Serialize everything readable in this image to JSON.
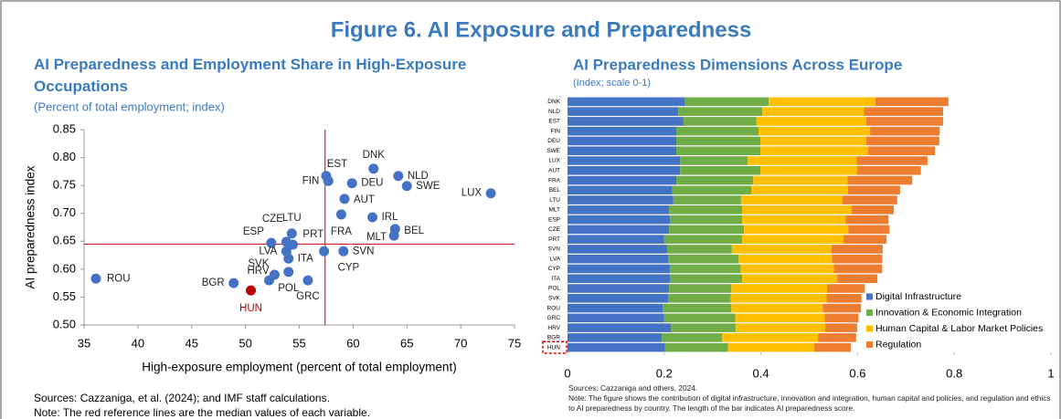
{
  "title": "Figure 6. AI Exposure and Preparedness",
  "chart_data": [
    {
      "type": "scatter",
      "title": "AI Preparedness and Employment Share in High-Exposure Occupations",
      "subtitle": "(Percent of total employment; index)",
      "x_label": "High-exposure employment (percent of total employment)",
      "y_label": "AI preparedness index",
      "labels": [
        "ROU",
        "BGR",
        "HUN",
        "HRV",
        "SVK",
        "POL",
        "GRC",
        "ESP",
        "CZE",
        "LTU",
        "PRT",
        "LVA",
        "ITA",
        "CYP",
        "SVN",
        "FRA",
        "MLT",
        "BEL",
        "IRL",
        "AUT",
        "FIN",
        "EST",
        "DEU",
        "DNK",
        "NLD",
        "SWE",
        "LUX"
      ],
      "x": [
        36.1,
        48.9,
        50.5,
        52.2,
        52.7,
        54.0,
        55.8,
        52.4,
        53.8,
        54.3,
        54.4,
        53.8,
        54.0,
        57.3,
        59.1,
        58.9,
        63.8,
        63.9,
        61.8,
        59.2,
        57.7,
        57.5,
        59.9,
        61.9,
        64.2,
        65.0,
        72.8
      ],
      "y": [
        0.583,
        0.575,
        0.562,
        0.58,
        0.59,
        0.595,
        0.58,
        0.647,
        0.649,
        0.664,
        0.644,
        0.632,
        0.619,
        0.632,
        0.632,
        0.698,
        0.66,
        0.672,
        0.693,
        0.726,
        0.758,
        0.767,
        0.754,
        0.78,
        0.767,
        0.749,
        0.736
      ],
      "colors": [
        "#4472c4",
        "#4472c4",
        "#c00000",
        "#4472c4",
        "#4472c4",
        "#4472c4",
        "#4472c4",
        "#4472c4",
        "#4472c4",
        "#4472c4",
        "#4472c4",
        "#4472c4",
        "#4472c4",
        "#4472c4",
        "#4472c4",
        "#4472c4",
        "#4472c4",
        "#4472c4",
        "#4472c4",
        "#4472c4",
        "#4472c4",
        "#4472c4",
        "#4472c4",
        "#4472c4",
        "#4472c4",
        "#4472c4",
        "#4472c4"
      ],
      "xlim": [
        35,
        75
      ],
      "xticks": [
        35,
        40,
        45,
        50,
        55,
        60,
        65,
        70,
        75
      ],
      "ylim": [
        0.5,
        0.85
      ],
      "yticks": [
        {
          "value": 0.5,
          "label": "0.50"
        },
        0.55,
        {
          "value": 0.6,
          "label": "0.60"
        },
        0.65,
        {
          "value": 0.7,
          "label": "0.70"
        },
        0.75,
        {
          "value": 0.8,
          "label": "0.80"
        },
        0.85
      ],
      "ref_x": 57.4,
      "ref_y": 0.645,
      "ref_color": "#c00000",
      "sources": "Sources: Cazzaniga, et al. (2024); and IMF staff calculations.",
      "note": "Note: The red reference lines are the median values of each variable."
    },
    {
      "type": "stacked_bar_horizontal",
      "title": "AI Preparedness Dimensions Across Europe",
      "subtitle": "(Index; scale 0-1)",
      "categories": [
        "DNK",
        "NLD",
        "EST",
        "FIN",
        "DEU",
        "SWE",
        "LUX",
        "AUT",
        "FRA",
        "BEL",
        "LTU",
        "MLT",
        "ESP",
        "CZE",
        "PRT",
        "SVN",
        "LVA",
        "CYP",
        "ITA",
        "POL",
        "SVK",
        "ROU",
        "GRC",
        "HRV",
        "BGR",
        "HUN"
      ],
      "series": [
        {
          "name": "Digital Infrastructure",
          "color": "#4472c4",
          "values": [
            0.242,
            0.229,
            0.24,
            0.225,
            0.225,
            0.225,
            0.233,
            0.233,
            0.225,
            0.217,
            0.219,
            0.21,
            0.212,
            0.21,
            0.2,
            0.206,
            0.208,
            0.212,
            0.212,
            0.21,
            0.208,
            0.197,
            0.2,
            0.214,
            0.195,
            0.202
          ]
        },
        {
          "name": "Innovation & Economic Integration",
          "color": "#70ad47",
          "values": [
            0.174,
            0.174,
            0.151,
            0.17,
            0.174,
            0.174,
            0.14,
            0.166,
            0.159,
            0.163,
            0.14,
            0.151,
            0.149,
            0.155,
            0.161,
            0.134,
            0.146,
            0.146,
            0.149,
            0.129,
            0.13,
            0.142,
            0.147,
            0.134,
            0.125,
            0.13
          ]
        },
        {
          "name": "Human Capital & Labor Market Policies",
          "color": "#ffc000",
          "values": [
            0.221,
            0.21,
            0.227,
            0.231,
            0.219,
            0.223,
            0.225,
            0.2,
            0.195,
            0.2,
            0.21,
            0.227,
            0.214,
            0.216,
            0.21,
            0.206,
            0.193,
            0.193,
            0.197,
            0.198,
            0.198,
            0.189,
            0.185,
            0.185,
            0.198,
            0.178
          ]
        },
        {
          "name": "Regulation",
          "color": "#ed7d31",
          "values": [
            0.151,
            0.164,
            0.159,
            0.144,
            0.151,
            0.138,
            0.147,
            0.132,
            0.134,
            0.108,
            0.113,
            0.087,
            0.089,
            0.085,
            0.089,
            0.106,
            0.104,
            0.1,
            0.083,
            0.078,
            0.072,
            0.079,
            0.07,
            0.066,
            0.079,
            0.076
          ]
        }
      ],
      "xlim": [
        0,
        1
      ],
      "xticks": [
        0,
        0.2,
        0.4,
        0.6,
        0.8,
        1
      ],
      "highlight_color": "#e00000",
      "sources": "Sources: Cazzaniga and others, 2024.",
      "note": "Note: The figure shows the contribution of digital infrastructure, innovation and integration, human capital and policies, and regulation and ethics to AI preparedness by country. The length of the bar indicates AI preparedness score."
    }
  ]
}
